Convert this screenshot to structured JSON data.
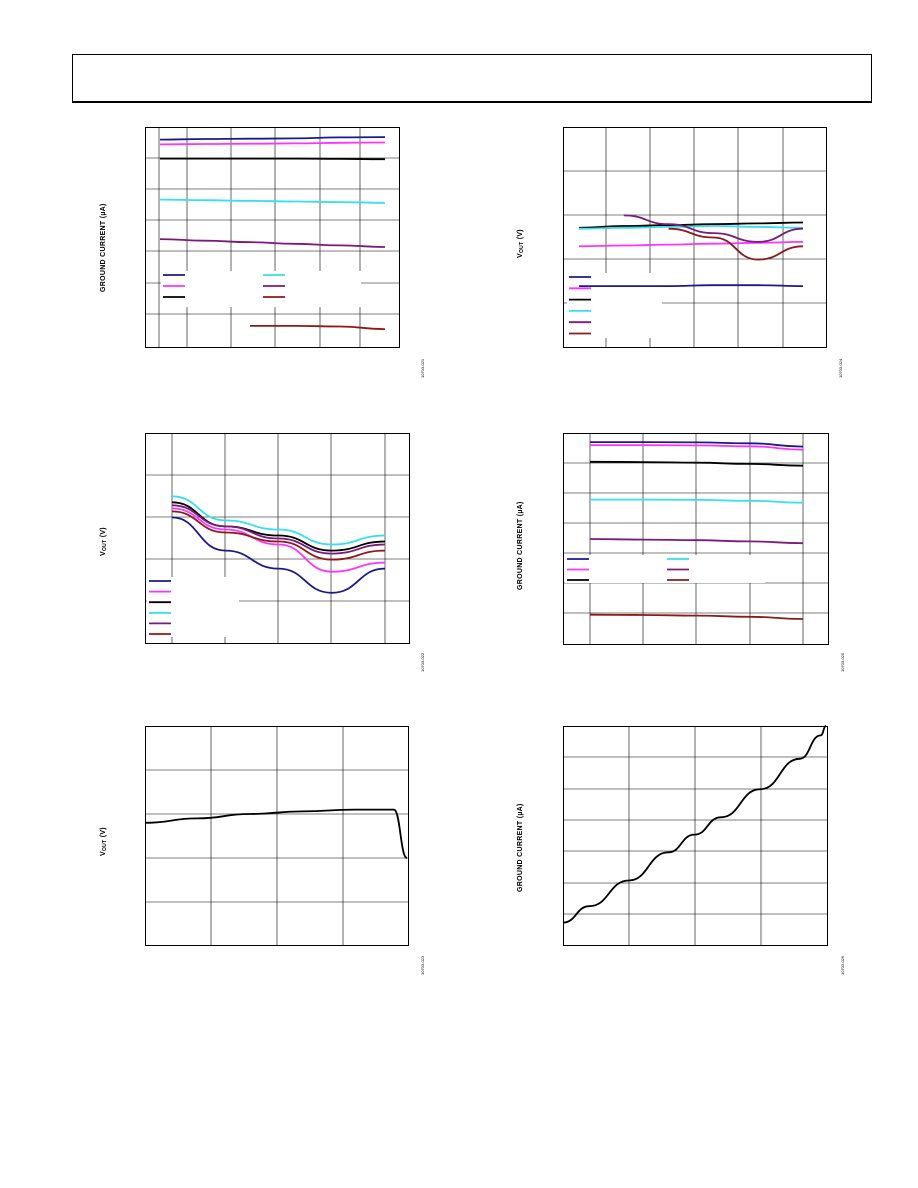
{
  "page": {
    "header_text": ""
  },
  "charts": {
    "c1": {
      "ylabel": "GROUND CURRENT (µA)",
      "code": "10703-021"
    },
    "c2": {
      "ylabel": "VOUT (V)",
      "code": "10703-024"
    },
    "c3": {
      "ylabel": "VOUT (V)",
      "code": "10703-022"
    },
    "c4": {
      "ylabel": "GROUND CURRENT (µA)",
      "code": "10703-025"
    },
    "c5": {
      "ylabel": "VOUT (V)",
      "code": "10703-023"
    },
    "c6": {
      "ylabel": "GROUND CURRENT (µA)",
      "code": "10703-026"
    }
  },
  "chart_data": [
    {
      "type": "line",
      "ylabel": "GROUND CURRENT (µA)",
      "x": [
        0,
        0.2,
        0.4,
        0.6,
        0.8,
        1.0
      ],
      "grid": true,
      "legend_placement": "bottom-left",
      "series": [
        {
          "color": "#1a1a8c",
          "values": [
            6.6,
            6.62,
            6.63,
            6.64,
            6.67,
            6.68
          ]
        },
        {
          "color": "#ff33ff",
          "values": [
            6.45,
            6.46,
            6.47,
            6.48,
            6.5,
            6.51
          ]
        },
        {
          "color": "#000000",
          "values": [
            6.0,
            6.0,
            6.0,
            6.0,
            5.99,
            5.98
          ]
        },
        {
          "color": "#33e0ee",
          "values": [
            4.7,
            4.68,
            4.66,
            4.64,
            4.62,
            4.6
          ]
        },
        {
          "color": "#7a1a7a",
          "values": [
            3.45,
            3.4,
            3.35,
            3.3,
            3.25,
            3.2
          ]
        },
        {
          "color": "#8c1a1a",
          "values": [
            null,
            null,
            0.7,
            0.7,
            0.68,
            0.6
          ]
        }
      ]
    },
    {
      "type": "line",
      "ylabel": "VOUT (V)",
      "x": [
        0,
        0.2,
        0.4,
        0.6,
        0.8,
        1.0
      ],
      "grid": true,
      "legend_placement": "bottom-left",
      "series": [
        {
          "color": "#1a1a8c",
          "values": [
            2.2,
            2.2,
            2.2,
            2.21,
            2.21,
            2.2
          ]
        },
        {
          "color": "#ff33ff",
          "values": [
            2.65,
            2.66,
            2.67,
            2.68,
            2.69,
            2.7
          ]
        },
        {
          "color": "#000000",
          "values": [
            2.86,
            2.88,
            2.89,
            2.9,
            2.91,
            2.92
          ]
        },
        {
          "color": "#33e0ee",
          "values": [
            2.85,
            2.86,
            2.87,
            2.88,
            2.87,
            2.86
          ]
        },
        {
          "color": "#7a1a7a",
          "values": [
            null,
            3.0,
            2.9,
            2.8,
            2.7,
            2.85
          ]
        },
        {
          "color": "#8c1a1a",
          "values": [
            null,
            null,
            2.85,
            2.75,
            2.5,
            2.65
          ]
        }
      ]
    },
    {
      "type": "line",
      "ylabel": "VOUT (V)",
      "x": [
        0,
        0.25,
        0.5,
        0.75,
        1.0
      ],
      "grid": true,
      "legend_placement": "bottom-left",
      "series": [
        {
          "color": "#1a1a8c",
          "values": [
            3.1,
            2.55,
            2.25,
            1.85,
            2.25
          ]
        },
        {
          "color": "#ff33ff",
          "values": [
            3.25,
            2.9,
            2.65,
            2.2,
            2.35
          ]
        },
        {
          "color": "#000000",
          "values": [
            3.35,
            2.95,
            2.8,
            2.55,
            2.7
          ]
        },
        {
          "color": "#33e0ee",
          "values": [
            3.45,
            3.05,
            2.9,
            2.65,
            2.8
          ]
        },
        {
          "color": "#7a1a7a",
          "values": [
            3.3,
            2.95,
            2.75,
            2.5,
            2.65
          ]
        },
        {
          "color": "#8c1a1a",
          "values": [
            3.2,
            2.85,
            2.7,
            2.4,
            2.55
          ]
        }
      ]
    },
    {
      "type": "line",
      "ylabel": "GROUND CURRENT (µA)",
      "x": [
        0,
        0.25,
        0.5,
        0.75,
        1.0
      ],
      "grid": true,
      "legend_placement": "bottom-left",
      "series": [
        {
          "color": "#1a1a8c",
          "values": [
            6.7,
            6.7,
            6.69,
            6.66,
            6.55
          ]
        },
        {
          "color": "#ff33ff",
          "values": [
            6.6,
            6.6,
            6.59,
            6.56,
            6.45
          ]
        },
        {
          "color": "#000000",
          "values": [
            6.05,
            6.04,
            6.02,
            5.98,
            5.92
          ]
        },
        {
          "color": "#33e0ee",
          "values": [
            4.8,
            4.8,
            4.79,
            4.76,
            4.7
          ]
        },
        {
          "color": "#7a1a7a",
          "values": [
            3.5,
            3.48,
            3.46,
            3.42,
            3.36
          ]
        },
        {
          "color": "#8c1a1a",
          "values": [
            1.0,
            0.99,
            0.97,
            0.93,
            0.86
          ]
        }
      ]
    },
    {
      "type": "line",
      "ylabel": "VOUT (V)",
      "x": [
        0,
        0.2,
        0.4,
        0.6,
        0.8,
        0.95,
        1.0
      ],
      "grid": true,
      "series": [
        {
          "color": "#000000",
          "values": [
            2.9,
            2.95,
            3.0,
            3.03,
            3.05,
            3.05,
            2.5
          ]
        }
      ]
    },
    {
      "type": "line",
      "ylabel": "GROUND CURRENT (µA)",
      "x": [
        0,
        0.1,
        0.25,
        0.4,
        0.5,
        0.6,
        0.75,
        0.9,
        0.98,
        1.0
      ],
      "grid": true,
      "series": [
        {
          "color": "#000000",
          "values": [
            1.0,
            1.35,
            1.9,
            2.5,
            2.88,
            3.25,
            3.85,
            4.5,
            5.0,
            5.2
          ]
        }
      ]
    }
  ]
}
